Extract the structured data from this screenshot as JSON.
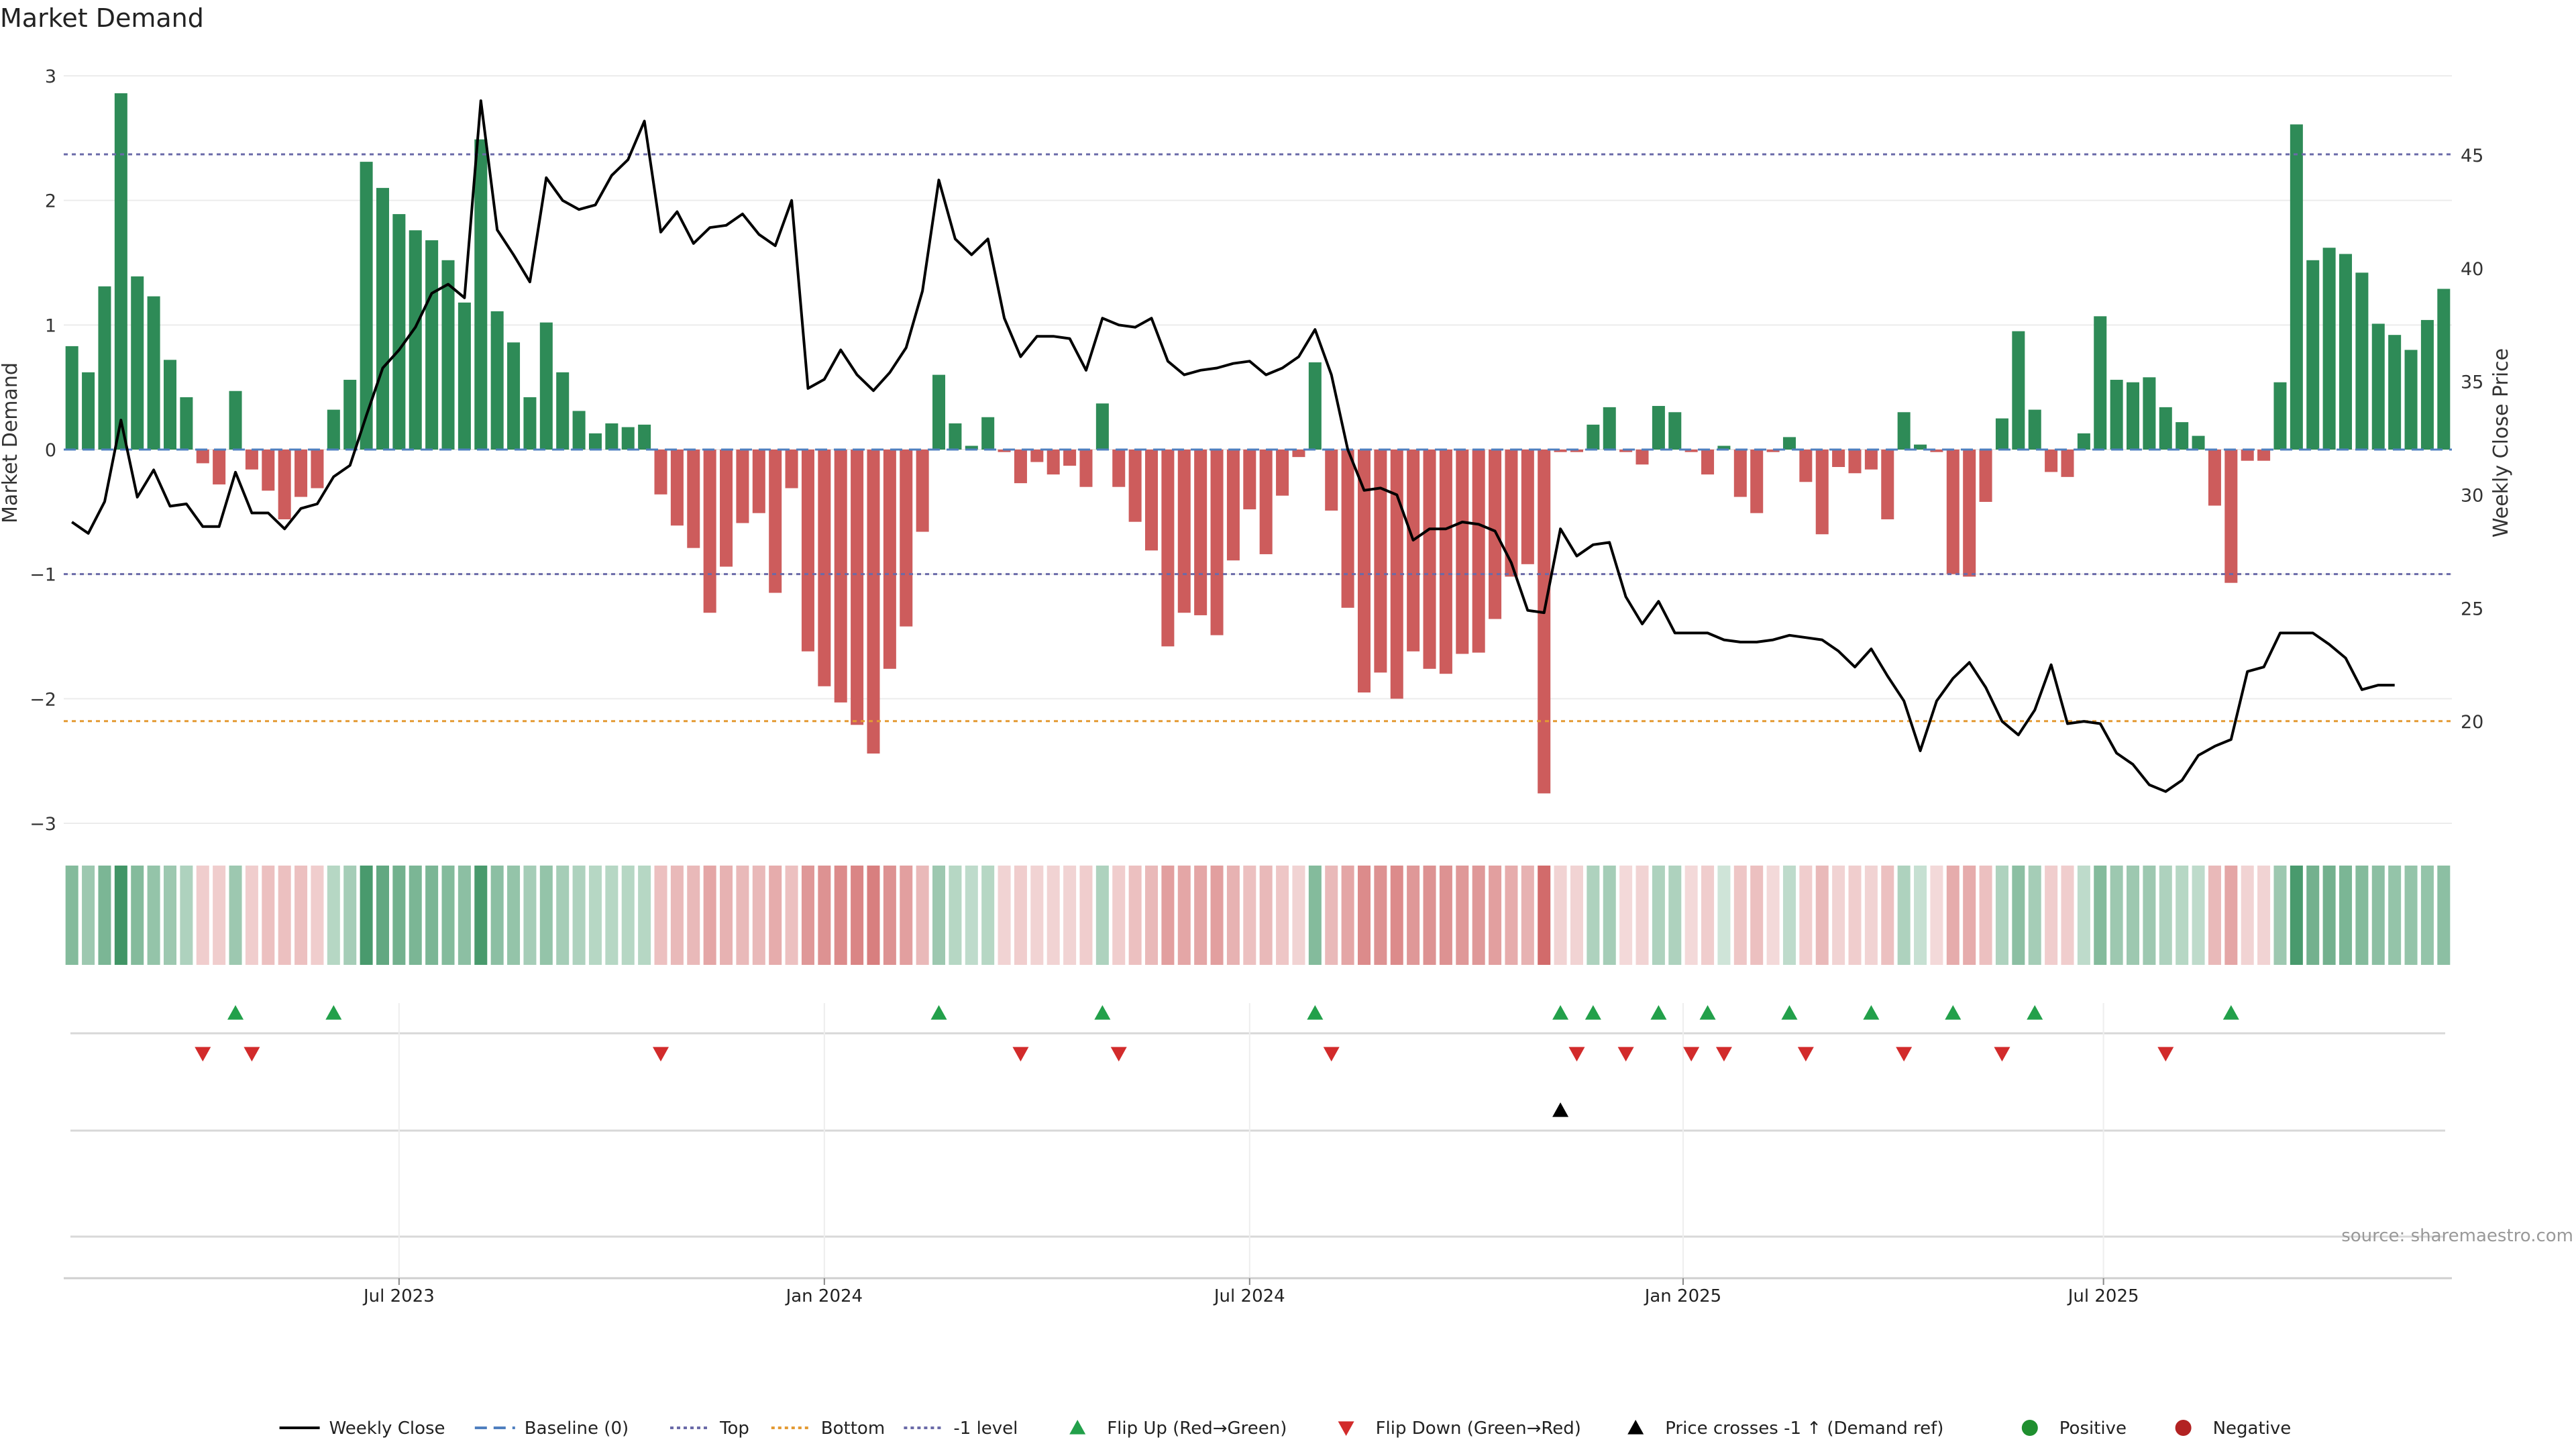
{
  "title": "Market Demand",
  "source": "source: sharemaestro.com",
  "colors": {
    "positive": "#2e8b57",
    "negative": "#cd5c5c",
    "price": "#000000",
    "top_line": "#6a6aa8",
    "bottom_line": "#e39a33",
    "level_line": "#6a6aa8",
    "baseline": "#4f7fbf",
    "flip_up": "#22a04a",
    "flip_down": "#d22b2b",
    "cross_up": "#000000",
    "dot_positive": "#1f8f2f",
    "dot_negative": "#b22222"
  },
  "chart_data": {
    "type": "bar",
    "title": "Market Demand",
    "ylabel": "Market Demand",
    "y2label": "Weekly Close Price",
    "ylim": [
      -3,
      3
    ],
    "y2lim": [
      15.5,
      48.5
    ],
    "yticks": [
      "3",
      "2",
      "1",
      "0",
      "−1",
      "−2",
      "−3"
    ],
    "y2ticks": [
      "45",
      "40",
      "35",
      "30",
      "25",
      "20"
    ],
    "xtick_labels": [
      "Jul 2023",
      "Jan 2024",
      "Jul 2024",
      "Jan 2025",
      "Jul 2025"
    ],
    "reference_lines": {
      "top": 2.37,
      "bottom": -2.18,
      "minus_one_level": -1,
      "baseline": 0
    },
    "series": [
      {
        "name": "Market Demand",
        "values": [
          0.83,
          0.62,
          1.31,
          2.86,
          1.39,
          1.23,
          0.72,
          0.42,
          -0.11,
          -0.28,
          0.47,
          -0.16,
          -0.33,
          -0.56,
          -0.38,
          -0.31,
          0.32,
          0.56,
          2.31,
          2.1,
          1.89,
          1.76,
          1.68,
          1.52,
          1.18,
          2.49,
          1.11,
          0.86,
          0.42,
          1.02,
          0.62,
          0.31,
          0.13,
          0.21,
          0.18,
          0.2,
          -0.36,
          -0.61,
          -0.79,
          -1.31,
          -0.94,
          -0.59,
          -0.51,
          -1.15,
          -0.31,
          -1.62,
          -1.9,
          -2.03,
          -2.21,
          -2.44,
          -1.76,
          -1.42,
          -0.66,
          0.6,
          0.21,
          0.03,
          0.26,
          -0.02,
          -0.27,
          -0.1,
          -0.2,
          -0.13,
          -0.3,
          0.37,
          -0.3,
          -0.58,
          -0.81,
          -1.58,
          -1.31,
          -1.33,
          -1.49,
          -0.89,
          -0.48,
          -0.84,
          -0.37,
          -0.06,
          0.7,
          -0.49,
          -1.27,
          -1.95,
          -1.79,
          -2.0,
          -1.62,
          -1.76,
          -1.8,
          -1.64,
          -1.63,
          -1.36,
          -1.02,
          -0.92,
          -2.76,
          -0.02,
          -0.02,
          0.2,
          0.34,
          -0.02,
          -0.12,
          0.35,
          0.3,
          -0.02,
          -0.2,
          0.03,
          -0.38,
          -0.51,
          -0.02,
          0.1,
          -0.26,
          -0.68,
          -0.14,
          -0.19,
          -0.16,
          -0.56,
          0.3,
          0.04,
          -0.02,
          -1.0,
          -1.02,
          -0.42,
          0.25,
          0.95,
          0.32,
          -0.18,
          -0.22,
          0.13,
          1.07,
          0.56,
          0.54,
          0.58,
          0.34,
          0.22,
          0.11,
          -0.45,
          -1.07,
          -0.09,
          -0.09,
          0.54,
          2.61,
          1.52,
          1.62,
          1.57,
          1.42,
          1.01,
          0.92,
          0.8,
          1.04,
          1.29
        ]
      },
      {
        "name": "Weekly Close",
        "values": [
          28.8,
          28.3,
          29.7,
          33.3,
          29.9,
          31.1,
          29.5,
          29.6,
          28.6,
          28.6,
          31.0,
          29.2,
          29.2,
          28.5,
          29.4,
          29.6,
          30.8,
          31.3,
          33.5,
          35.6,
          36.4,
          37.4,
          38.9,
          39.3,
          38.7,
          47.4,
          41.7,
          40.6,
          39.4,
          44.0,
          43.0,
          42.6,
          42.8,
          44.1,
          44.8,
          46.5,
          41.6,
          42.5,
          41.1,
          41.8,
          41.9,
          42.4,
          41.5,
          41.0,
          43.0,
          34.7,
          35.1,
          36.4,
          35.3,
          34.6,
          35.4,
          36.5,
          39.0,
          43.9,
          41.3,
          40.6,
          41.3,
          37.8,
          36.1,
          37.0,
          37.0,
          36.9,
          35.5,
          37.8,
          37.5,
          37.4,
          37.8,
          35.9,
          35.3,
          35.5,
          35.6,
          35.8,
          35.9,
          35.3,
          35.6,
          36.1,
          37.3,
          35.3,
          32.0,
          30.2,
          30.3,
          30.0,
          28.0,
          28.5,
          28.5,
          28.8,
          28.7,
          28.4,
          27.0,
          24.9,
          24.8,
          28.5,
          27.3,
          27.8,
          27.9,
          25.5,
          24.3,
          25.3,
          23.9,
          23.9,
          23.9,
          23.6,
          23.5,
          23.5,
          23.6,
          23.8,
          23.7,
          23.6,
          23.1,
          22.4,
          23.2,
          22.0,
          20.9,
          18.7,
          20.9,
          21.9,
          22.6,
          21.5,
          20.0,
          19.4,
          20.5,
          22.5,
          19.9,
          20.0,
          19.9,
          18.6,
          18.1,
          17.2,
          16.9,
          17.4,
          18.5,
          18.9,
          19.2,
          22.2,
          22.4,
          23.9,
          23.9,
          23.9,
          23.4,
          22.8,
          21.4,
          21.6,
          21.6
        ]
      }
    ],
    "heat_intensity": [
      0.55,
      0.4,
      0.6,
      0.95,
      0.55,
      0.45,
      0.4,
      0.3,
      0.2,
      0.2,
      0.4,
      0.2,
      0.3,
      0.3,
      0.3,
      0.2,
      0.25,
      0.35,
      0.9,
      0.75,
      0.65,
      0.6,
      0.6,
      0.55,
      0.5,
      0.9,
      0.5,
      0.45,
      0.35,
      0.45,
      0.35,
      0.3,
      0.25,
      0.25,
      0.25,
      0.25,
      0.3,
      0.35,
      0.35,
      0.5,
      0.4,
      0.35,
      0.35,
      0.45,
      0.3,
      0.6,
      0.65,
      0.7,
      0.75,
      0.8,
      0.65,
      0.55,
      0.35,
      0.4,
      0.25,
      0.2,
      0.25,
      0.15,
      0.2,
      0.15,
      0.15,
      0.15,
      0.2,
      0.3,
      0.2,
      0.3,
      0.35,
      0.55,
      0.5,
      0.5,
      0.55,
      0.4,
      0.3,
      0.35,
      0.25,
      0.15,
      0.55,
      0.35,
      0.5,
      0.7,
      0.65,
      0.7,
      0.6,
      0.65,
      0.65,
      0.6,
      0.6,
      0.55,
      0.45,
      0.4,
      0.95,
      0.15,
      0.15,
      0.3,
      0.35,
      0.1,
      0.15,
      0.3,
      0.3,
      0.1,
      0.2,
      0.1,
      0.25,
      0.3,
      0.1,
      0.2,
      0.2,
      0.35,
      0.15,
      0.2,
      0.15,
      0.3,
      0.3,
      0.15,
      0.1,
      0.45,
      0.45,
      0.3,
      0.3,
      0.5,
      0.35,
      0.2,
      0.2,
      0.2,
      0.55,
      0.4,
      0.4,
      0.4,
      0.3,
      0.25,
      0.2,
      0.35,
      0.5,
      0.15,
      0.15,
      0.4,
      0.9,
      0.65,
      0.65,
      0.6,
      0.55,
      0.5,
      0.45,
      0.45,
      0.45,
      0.5
    ],
    "flip_up_weeks": [
      10,
      16,
      53,
      63,
      76,
      91,
      93,
      97,
      100,
      105,
      110,
      115,
      120,
      132
    ],
    "flip_down_weeks": [
      8,
      11,
      36,
      58,
      64,
      77,
      92,
      95,
      99,
      101,
      106,
      112,
      118,
      128
    ],
    "price_cross_weeks": [
      91
    ],
    "legend": {
      "position": "bottom-center",
      "items": [
        {
          "label": "Weekly Close",
          "marker": "solid-line"
        },
        {
          "label": "Baseline (0)",
          "marker": "dashed-line"
        },
        {
          "label": "Top",
          "marker": "dotted-line"
        },
        {
          "label": "Bottom",
          "marker": "dotted-line-orange"
        },
        {
          "label": "-1 level",
          "marker": "dotted-line"
        },
        {
          "label": "Flip Up (Red→Green)",
          "marker": "triangle-up-green"
        },
        {
          "label": "Flip Down (Green→Red)",
          "marker": "triangle-down-red"
        },
        {
          "label": "Price crosses -1 ↑ (Demand ref)",
          "marker": "triangle-up-black"
        },
        {
          "label": "Positive",
          "marker": "dot-green"
        },
        {
          "label": "Negative",
          "marker": "dot-red"
        }
      ]
    }
  }
}
